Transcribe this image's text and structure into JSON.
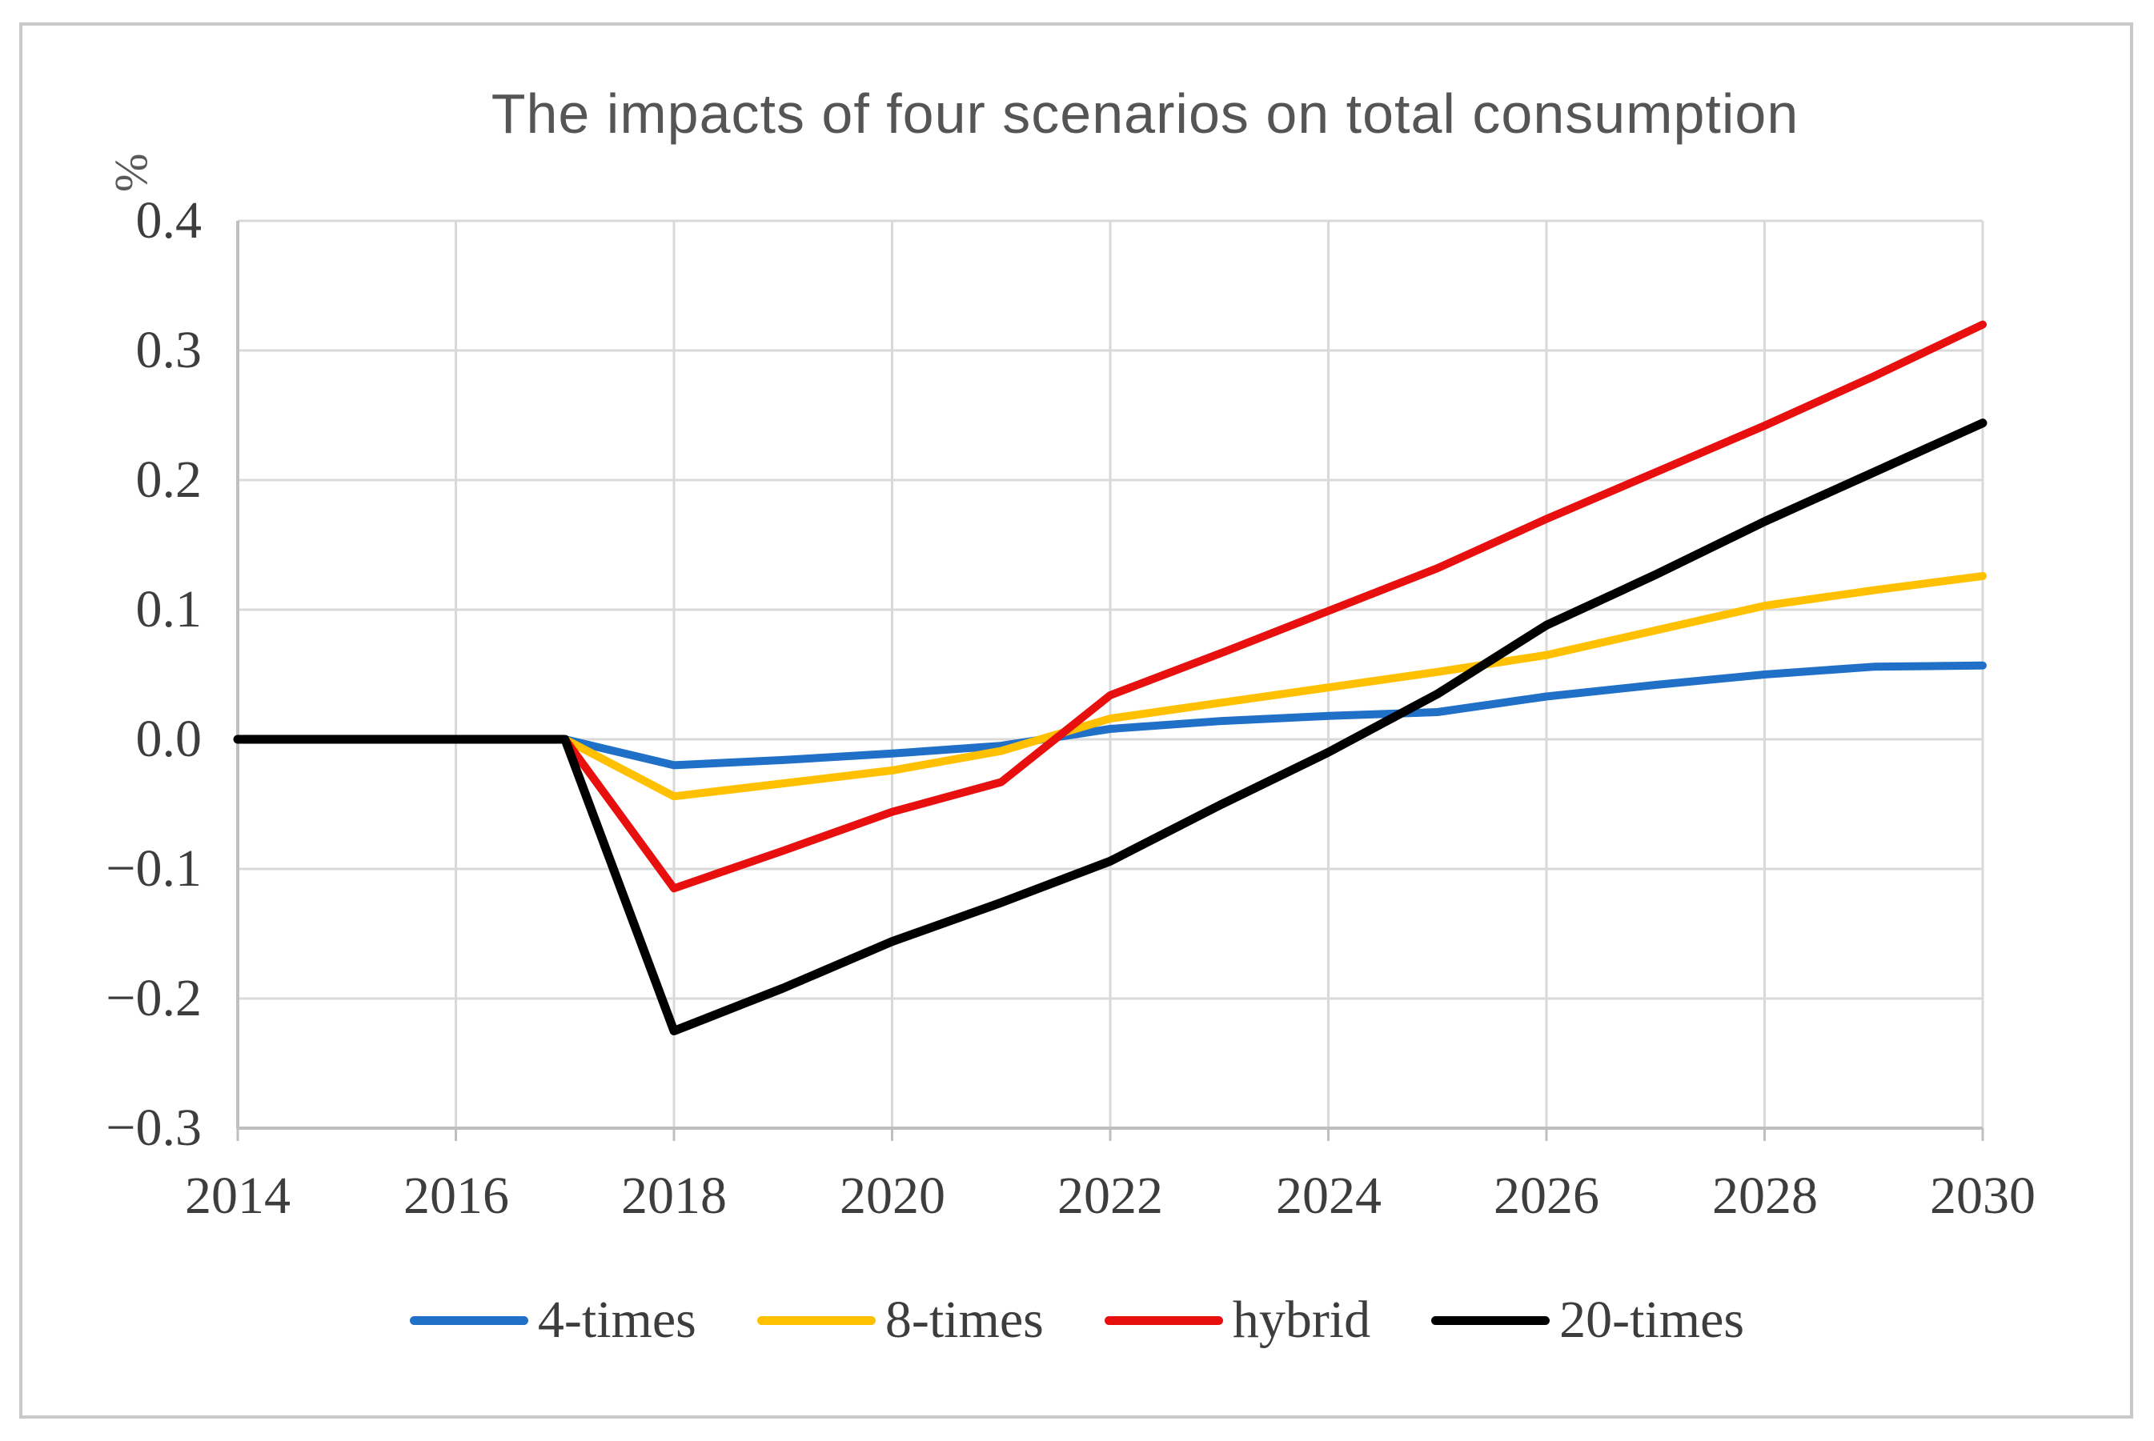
{
  "figure": {
    "title": "The impacts of four scenarios on total consumption",
    "y_unit": "%"
  },
  "chart_data": {
    "type": "line",
    "title": "The impacts of four scenarios on total consumption",
    "xlabel": "",
    "ylabel": "%",
    "x": [
      2014,
      2015,
      2016,
      2017,
      2018,
      2019,
      2020,
      2021,
      2022,
      2023,
      2024,
      2025,
      2026,
      2027,
      2028,
      2029,
      2030
    ],
    "xlim": [
      2014,
      2030
    ],
    "ylim": [
      -0.3,
      0.4
    ],
    "grid": true,
    "legend_position": "bottom",
    "x_tick_labels": [
      "2014",
      "2016",
      "2018",
      "2020",
      "2022",
      "2024",
      "2026",
      "2028",
      "2030"
    ],
    "x_tick_years": [
      2014,
      2016,
      2018,
      2020,
      2022,
      2024,
      2026,
      2028,
      2030
    ],
    "y_tick_labels": [
      "0.4",
      "0.3",
      "0.2",
      "0.1",
      "0.0",
      "−0.1",
      "−0.2",
      "−0.3"
    ],
    "y_tick_values": [
      0.4,
      0.3,
      0.2,
      0.1,
      0.0,
      -0.1,
      -0.2,
      -0.3
    ],
    "series": [
      {
        "name": "4-times",
        "color": "#2070c8",
        "values": [
          0,
          0,
          0,
          0,
          -0.02,
          -0.016,
          -0.011,
          -0.005,
          0.008,
          0.014,
          0.018,
          0.021,
          0.033,
          0.042,
          0.05,
          0.056,
          0.057
        ]
      },
      {
        "name": "8-times",
        "color": "#ffc000",
        "values": [
          0,
          0,
          0,
          0,
          -0.044,
          -0.034,
          -0.024,
          -0.009,
          0.016,
          0.028,
          0.04,
          0.052,
          0.065,
          0.084,
          0.103,
          0.115,
          0.126
        ]
      },
      {
        "name": "hybrid",
        "color": "#e8100f",
        "values": [
          0,
          0,
          0,
          0,
          -0.115,
          -0.086,
          -0.056,
          -0.033,
          0.034,
          0.066,
          0.099,
          0.132,
          0.17,
          0.206,
          0.242,
          0.28,
          0.32
        ]
      },
      {
        "name": "20-times",
        "color": "#000000",
        "values": [
          0,
          0,
          0,
          0,
          -0.225,
          -0.192,
          -0.156,
          -0.126,
          -0.094,
          -0.051,
          -0.01,
          0.035,
          0.088,
          0.127,
          0.168,
          0.206,
          0.244
        ]
      }
    ],
    "style": {
      "gridline_color": "#d9d9d9",
      "axis_color": "#bfbfbf",
      "line_width": 10
    }
  }
}
